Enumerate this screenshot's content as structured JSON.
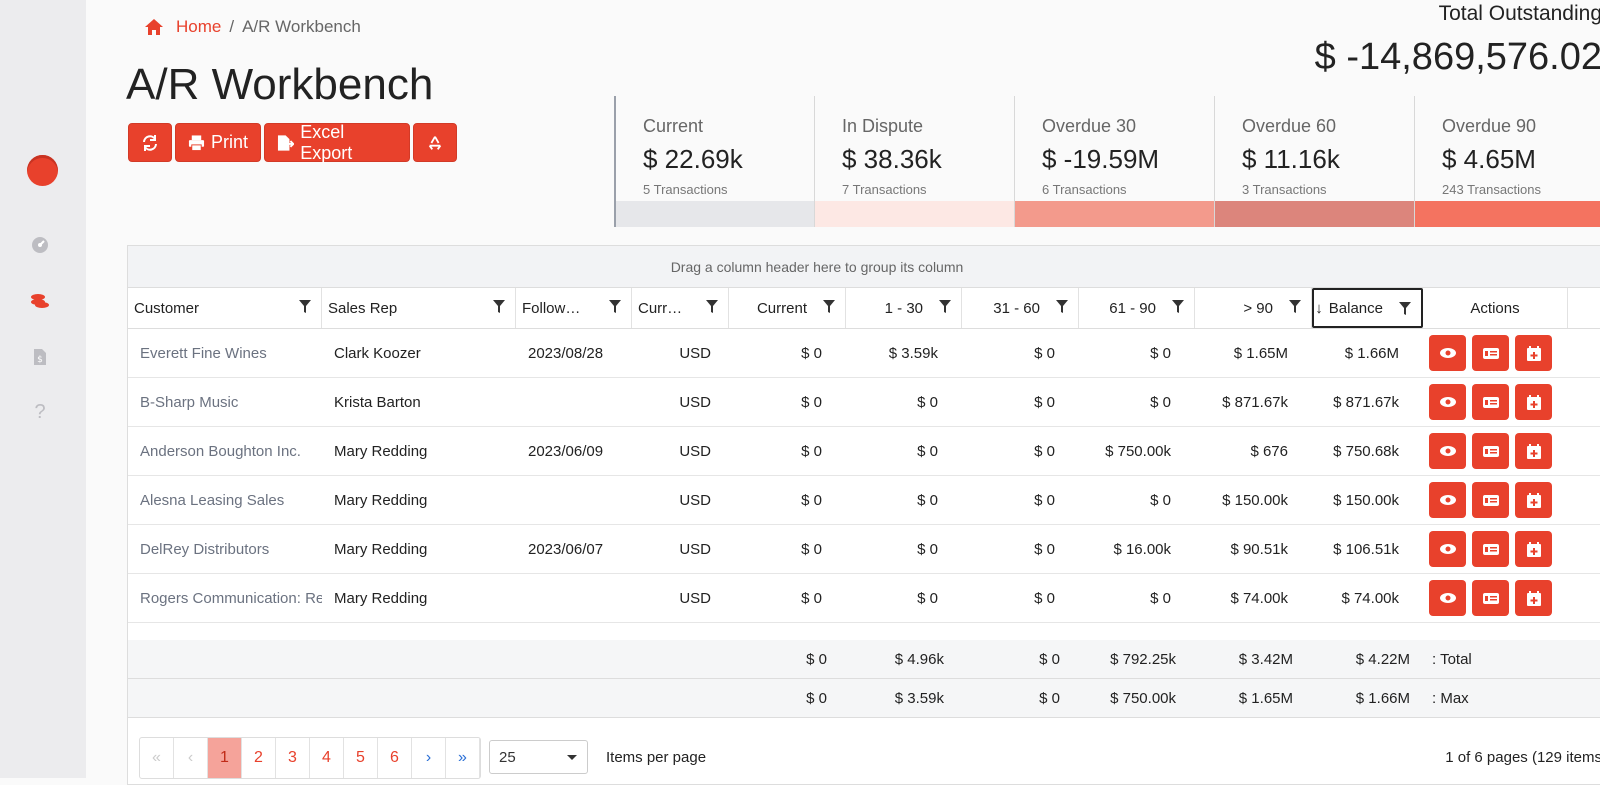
{
  "breadcrumb": {
    "home": "Home",
    "separator": "/",
    "current": "A/R Workbench"
  },
  "page_title": "A/R Workbench",
  "toolbar": {
    "print": "Print",
    "excel_export": "Excel Export"
  },
  "total": {
    "label": "Total Outstanding",
    "value": "$ -14,869,576.02"
  },
  "cards": [
    {
      "label": "Current",
      "value": "$ 22.69k",
      "transactions": "5 Transactions",
      "color": "#e6e7ea"
    },
    {
      "label": "In Dispute",
      "value": "$ 38.36k",
      "transactions": "7 Transactions",
      "color": "#fde8e4"
    },
    {
      "label": "Overdue 30",
      "value": "$ -19.59M",
      "transactions": "6 Transactions",
      "color": "#f39a8c"
    },
    {
      "label": "Overdue 60",
      "value": "$ 11.16k",
      "transactions": "3 Transactions",
      "color": "#dc857c"
    },
    {
      "label": "Overdue 90",
      "value": "$ 4.65M",
      "transactions": "243 Transactions",
      "color": "#f47360"
    }
  ],
  "grid": {
    "group_hint": "Drag a column header here to group its column",
    "columns": [
      "Customer",
      "Sales Rep",
      "Follow…",
      "Curr…",
      "Current",
      "1 - 30",
      "31 - 60",
      "61 - 90",
      "> 90",
      "Balance",
      "Actions"
    ],
    "rows": [
      [
        "Everett Fine Wines",
        "Clark Koozer",
        "2023/08/28",
        "USD",
        "$ 0",
        "$ 3.59k",
        "$ 0",
        "$ 0",
        "$ 1.65M",
        "$ 1.66M"
      ],
      [
        "B-Sharp Music",
        "Krista Barton",
        "",
        "USD",
        "$ 0",
        "$ 0",
        "$ 0",
        "$ 0",
        "$ 871.67k",
        "$ 871.67k"
      ],
      [
        "Anderson Boughton Inc.",
        "Mary Redding",
        "2023/06/09",
        "USD",
        "$ 0",
        "$ 0",
        "$ 0",
        "$ 750.00k",
        "$ 676",
        "$ 750.68k"
      ],
      [
        "Alesna Leasing Sales",
        "Mary Redding",
        "",
        "USD",
        "$ 0",
        "$ 0",
        "$ 0",
        "$ 0",
        "$ 150.00k",
        "$ 150.00k"
      ],
      [
        "DelRey Distributors",
        "Mary Redding",
        "2023/06/07",
        "USD",
        "$ 0",
        "$ 0",
        "$ 0",
        "$ 16.00k",
        "$ 90.51k",
        "$ 106.51k"
      ],
      [
        "Rogers Communication: Re",
        "Mary Redding",
        "",
        "USD",
        "$ 0",
        "$ 0",
        "$ 0",
        "$ 0",
        "$ 74.00k",
        "$ 74.00k"
      ]
    ],
    "totals": {
      "current": "$ 0",
      "d1_30": "$ 4.96k",
      "d31_60": "$ 0",
      "d61_90": "$ 792.25k",
      "d90": "$ 3.42M",
      "balance": "$ 4.22M",
      "label": ": Total"
    },
    "max": {
      "current": "$ 0",
      "d1_30": "$ 3.59k",
      "d31_60": "$ 0",
      "d61_90": "$ 750.00k",
      "d90": "$ 1.65M",
      "balance": "$ 1.66M",
      "label": ": Max"
    }
  },
  "pager": {
    "pages": [
      "1",
      "2",
      "3",
      "4",
      "5",
      "6"
    ],
    "page_size": "25",
    "items_per_page": "Items per page",
    "info": "1 of 6 pages (129 items"
  },
  "accent": "#e8412c"
}
